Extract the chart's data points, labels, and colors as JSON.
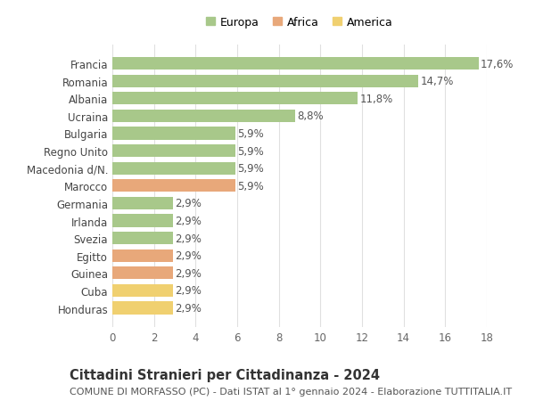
{
  "categories": [
    "Francia",
    "Romania",
    "Albania",
    "Ucraina",
    "Bulgaria",
    "Regno Unito",
    "Macedonia d/N.",
    "Marocco",
    "Germania",
    "Irlanda",
    "Svezia",
    "Egitto",
    "Guinea",
    "Cuba",
    "Honduras"
  ],
  "values": [
    17.6,
    14.7,
    11.8,
    8.8,
    5.9,
    5.9,
    5.9,
    5.9,
    2.9,
    2.9,
    2.9,
    2.9,
    2.9,
    2.9,
    2.9
  ],
  "labels": [
    "17,6%",
    "14,7%",
    "11,8%",
    "8,8%",
    "5,9%",
    "5,9%",
    "5,9%",
    "5,9%",
    "2,9%",
    "2,9%",
    "2,9%",
    "2,9%",
    "2,9%",
    "2,9%",
    "2,9%"
  ],
  "continents": [
    "Europa",
    "Europa",
    "Europa",
    "Europa",
    "Europa",
    "Europa",
    "Europa",
    "Africa",
    "Europa",
    "Europa",
    "Europa",
    "Africa",
    "Africa",
    "America",
    "America"
  ],
  "colors": {
    "Europa": "#a8c88a",
    "Africa": "#e8a87a",
    "America": "#f0d070"
  },
  "legend_items": [
    "Europa",
    "Africa",
    "America"
  ],
  "title_bold": "Cittadini Stranieri per Cittadinanza - 2024",
  "subtitle": "COMUNE DI MORFASSO (PC) - Dati ISTAT al 1° gennaio 2024 - Elaborazione TUTTITALIA.IT",
  "xlim": [
    0,
    18
  ],
  "xticks": [
    0,
    2,
    4,
    6,
    8,
    10,
    12,
    14,
    16,
    18
  ],
  "background_color": "#ffffff",
  "grid_color": "#e0e0e0",
  "bar_height": 0.72,
  "label_fontsize": 8.5,
  "tick_fontsize": 8.5,
  "ytick_fontsize": 8.5,
  "title_fontsize": 10.5,
  "subtitle_fontsize": 8.0
}
